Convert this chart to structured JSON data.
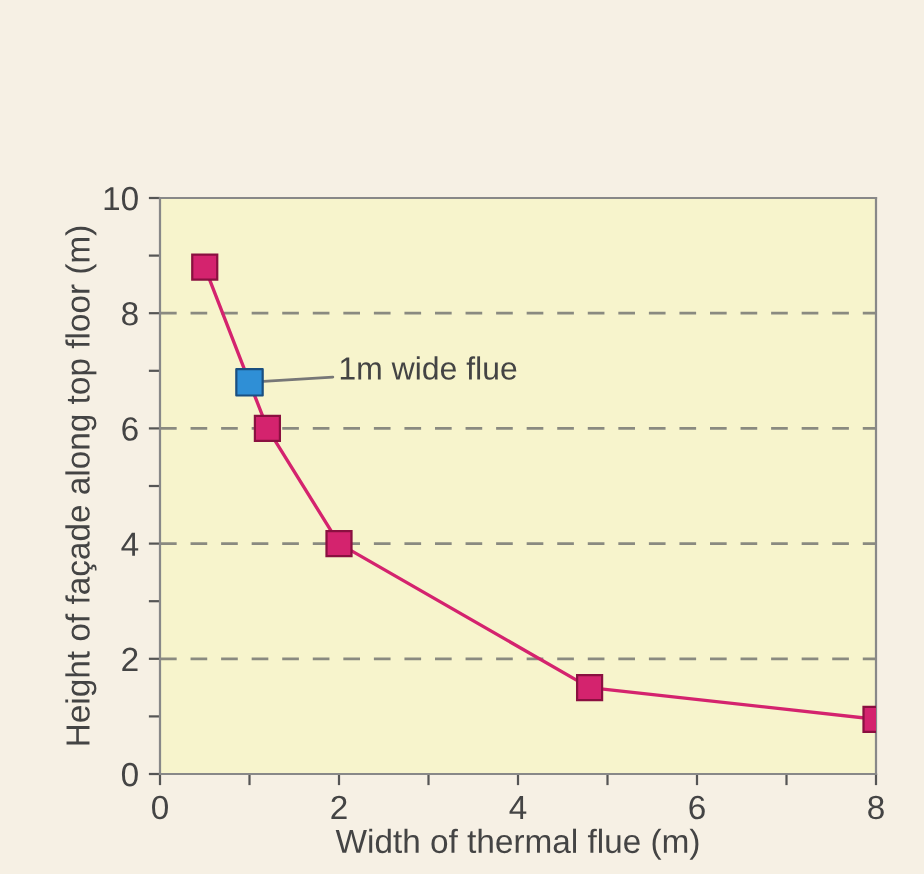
{
  "chart_data": {
    "type": "line",
    "xlabel": "Width of thermal flue (m)",
    "ylabel": "Height of façade along top floor (m)",
    "xlim": [
      0,
      8
    ],
    "ylim": [
      0,
      10
    ],
    "xticks": [
      0,
      {
        "value": 1,
        "label": null
      },
      2,
      {
        "value": 3,
        "label": null
      },
      4,
      {
        "value": 5,
        "label": null
      },
      6,
      {
        "value": 7,
        "label": null
      },
      8
    ],
    "yticks": [
      0,
      {
        "value": 1,
        "label": null
      },
      2,
      {
        "value": 3,
        "label": null
      },
      4,
      {
        "value": 5,
        "label": null
      },
      6,
      {
        "value": 7,
        "label": null
      },
      8,
      {
        "value": 9,
        "label": null
      },
      10
    ],
    "marker": "square",
    "line_style": "solid",
    "series": [
      {
        "color": "#d4236e",
        "x": [
          0.5,
          1.2,
          2,
          4.8,
          8
        ],
        "values": [
          8.8,
          6.0,
          4.0,
          1.5,
          0.95
        ]
      },
      {
        "type": "scatter",
        "color": "#2f8fd6",
        "x": [
          1.0
        ],
        "values": [
          6.8
        ]
      }
    ],
    "ref_lines": [
      {
        "axis": "y",
        "value": 2,
        "color": "#8a8a80",
        "line_style": "dashed"
      },
      {
        "axis": "y",
        "value": 4,
        "color": "#8a8a80",
        "line_style": "dashed"
      },
      {
        "axis": "y",
        "value": 6,
        "color": "#8a8a80",
        "line_style": "dashed"
      },
      {
        "axis": "y",
        "value": 8,
        "color": "#8a8a80",
        "line_style": "dashed"
      }
    ],
    "annotations": [
      {
        "text": "1m wide flue",
        "x": 1.0,
        "y": 6.8
      }
    ]
  }
}
